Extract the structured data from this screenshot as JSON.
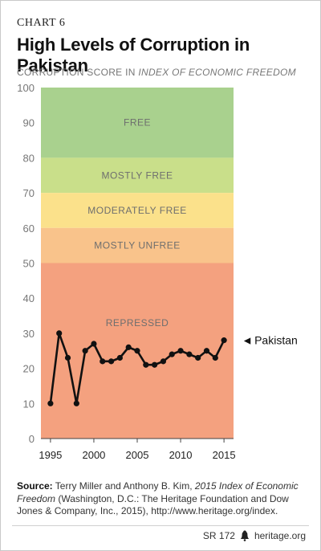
{
  "header": {
    "chart_label": "CHART 6",
    "title": "High Levels of Corruption in Pakistan",
    "subtitle_prefix": "CORRUPTION SCORE IN ",
    "subtitle_emph": "INDEX OF ECONOMIC FREEDOM"
  },
  "chart_data": {
    "type": "line",
    "title": "High Levels of Corruption in Pakistan",
    "ylabel": "CORRUPTION SCORE IN INDEX OF ECONOMIC FREEDOM",
    "xlabel": "",
    "xlim": [
      1995,
      2015
    ],
    "ylim": [
      0,
      100
    ],
    "x_ticks": [
      1995,
      2000,
      2005,
      2010,
      2015
    ],
    "y_ticks": [
      0,
      10,
      20,
      30,
      40,
      50,
      60,
      70,
      80,
      90,
      100
    ],
    "grid": false,
    "bands": [
      {
        "label": "FREE",
        "from": 80,
        "to": 100,
        "color": "#a9d18e"
      },
      {
        "label": "MOSTLY FREE",
        "from": 70,
        "to": 80,
        "color": "#c9df8a"
      },
      {
        "label": "MODERATELY FREE",
        "from": 60,
        "to": 70,
        "color": "#fbe18b"
      },
      {
        "label": "MOSTLY UNFREE",
        "from": 50,
        "to": 60,
        "color": "#f9c38b"
      },
      {
        "label": "REPRESSED",
        "from": 0,
        "to": 50,
        "color": "#f4a17f"
      }
    ],
    "series": [
      {
        "name": "Pakistan",
        "x": [
          1995,
          1996,
          1997,
          1998,
          1999,
          2000,
          2001,
          2002,
          2003,
          2004,
          2005,
          2006,
          2007,
          2008,
          2009,
          2010,
          2011,
          2012,
          2013,
          2014,
          2015
        ],
        "values": [
          10,
          30,
          23,
          10,
          25,
          27,
          22,
          22,
          23,
          26,
          25,
          21,
          21,
          22,
          24,
          25,
          24,
          23,
          25,
          23,
          28
        ]
      }
    ],
    "annotation": {
      "text": "Pakistan",
      "arrow": "◄"
    }
  },
  "source": {
    "label": "Source:",
    "text_1": " Terry Miller and Anthony B. Kim, ",
    "text_emph": "2015 Index of Economic Freedom",
    "text_2": " (Washington, D.C.: The Heritage Foundation and Dow Jones & Company, Inc., 2015), http://www.heritage.org/index."
  },
  "footer": {
    "report_id": "SR 172",
    "site": "heritage.org",
    "logo_icon": "liberty-bell-icon"
  }
}
